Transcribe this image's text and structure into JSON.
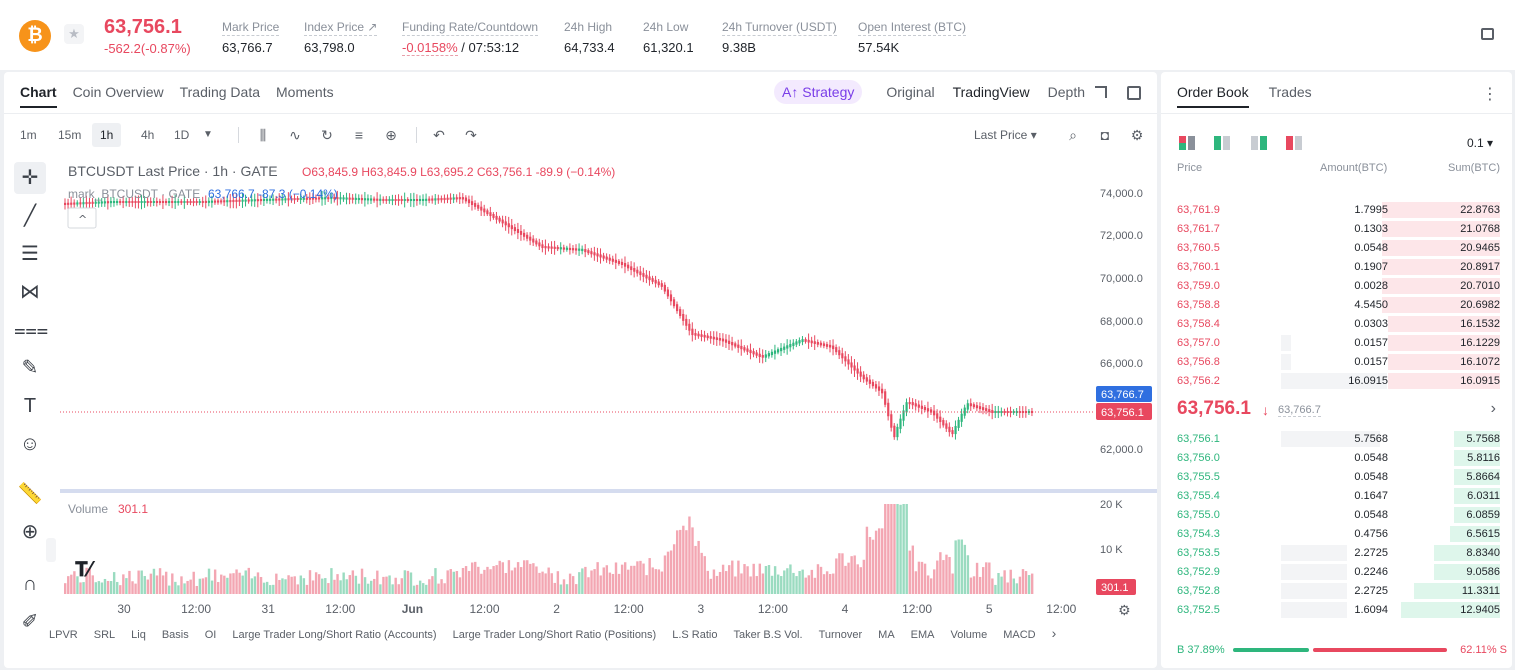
{
  "ticker": {
    "coin_letter": "₿",
    "last_price": "63,756.1",
    "change": "-562.2(-0.87%)",
    "stats": [
      {
        "label": "Mark Price",
        "value": "63,766.7"
      },
      {
        "label": "Index Price ↗",
        "value": "63,798.0"
      },
      {
        "label": "Funding Rate/Countdown",
        "value_red": "-0.0158%",
        "value": " / 07:53:12"
      },
      {
        "label": "24h High",
        "value": "64,733.4"
      },
      {
        "label": "24h Low",
        "value": "61,320.1"
      },
      {
        "label": "24h Turnover (USDT)",
        "value": "9.38B"
      },
      {
        "label": "Open Interest (BTC)",
        "value": "57.54K"
      }
    ]
  },
  "chart_tabs": [
    "Chart",
    "Coin Overview",
    "Trading Data",
    "Moments"
  ],
  "strategy_label": "A↑ Strategy",
  "view_tabs": [
    "Original",
    "TradingView",
    "Depth"
  ],
  "timeframes": [
    "1m",
    "15m",
    "1h",
    "4h",
    "1D"
  ],
  "price_type": "Last Price ▾",
  "legend": {
    "title": "BTCUSDT Last Price · 1h · GATE",
    "o": "O63,845.9",
    "h": "H63,845.9",
    "l": "L63,695.2",
    "c": "C63,756.1",
    "chg": "-89.9 (−0.14%)",
    "mark_title": "mark_BTCUSDT · GATE",
    "mark_vals": "63,766.7  -87.3 (−0.14%)"
  },
  "volume_legend": {
    "label": "Volume",
    "value": "301.1"
  },
  "price_axis": [
    "74,000.0",
    "72,000.0",
    "70,000.0",
    "68,000.0",
    "66,000.0",
    "64,000.0",
    "62,000.0"
  ],
  "price_tags": {
    "mark": "63,766.7",
    "last": "63,756.1"
  },
  "volume_axis": [
    "20 K",
    "10 K"
  ],
  "volume_tag": "301.1",
  "time_axis": [
    "30",
    "12:00",
    "31",
    "12:00",
    "Jun",
    "12:00",
    "2",
    "12:00",
    "3",
    "12:00",
    "4",
    "12:00",
    "5",
    "12:00"
  ],
  "indicators": [
    "LPVR",
    "SRL",
    "Liq",
    "Basis",
    "OI",
    "Large Trader Long/Short Ratio (Accounts)",
    "Large Trader Long/Short Ratio (Positions)",
    "L.S Ratio",
    "Taker B.S Vol.",
    "Turnover",
    "MA",
    "EMA",
    "Volume",
    "MACD"
  ],
  "order_book": {
    "tabs": [
      "Order Book",
      "Trades"
    ],
    "precision": "0.1 ▾",
    "headers": [
      "Price",
      "Amount(BTC)",
      "Sum(BTC)"
    ],
    "asks": [
      {
        "price": "63,761.9",
        "amount": "1.7995",
        "sum": "22.8763",
        "a": 0,
        "s": 0.48
      },
      {
        "price": "63,761.7",
        "amount": "0.1303",
        "sum": "21.0768",
        "a": 0,
        "s": 0.44
      },
      {
        "price": "63,760.5",
        "amount": "0.0548",
        "sum": "20.9465",
        "a": 0,
        "s": 0.44
      },
      {
        "price": "63,760.1",
        "amount": "0.1907",
        "sum": "20.8917",
        "a": 0,
        "s": 0.44
      },
      {
        "price": "63,759.0",
        "amount": "0.0028",
        "sum": "20.7010",
        "a": 0,
        "s": 0.43
      },
      {
        "price": "63,758.8",
        "amount": "4.5450",
        "sum": "20.6982",
        "a": 0,
        "s": 0.43
      },
      {
        "price": "63,758.4",
        "amount": "0.0303",
        "sum": "16.1532",
        "a": 0,
        "s": 0.34
      },
      {
        "price": "63,757.0",
        "amount": "0.0157",
        "sum": "16.1229",
        "a": 0.03,
        "s": 0.34
      },
      {
        "price": "63,756.8",
        "amount": "0.0157",
        "sum": "16.1072",
        "a": 0.03,
        "s": 0.34
      },
      {
        "price": "63,756.2",
        "amount": "16.0915",
        "sum": "16.0915",
        "a": 0.32,
        "s": 0.34
      }
    ],
    "mid_price": "63,756.1",
    "mid_arrow": "↓",
    "mid_mark": "63,766.7",
    "bids": [
      {
        "price": "63,756.1",
        "amount": "5.7568",
        "sum": "5.7568",
        "a": 0.3,
        "s": 0.14
      },
      {
        "price": "63,756.0",
        "amount": "0.0548",
        "sum": "5.8116",
        "a": 0,
        "s": 0.14
      },
      {
        "price": "63,755.5",
        "amount": "0.0548",
        "sum": "5.8664",
        "a": 0,
        "s": 0.14
      },
      {
        "price": "63,755.4",
        "amount": "0.1647",
        "sum": "6.0311",
        "a": 0,
        "s": 0.14
      },
      {
        "price": "63,755.0",
        "amount": "0.0548",
        "sum": "6.0859",
        "a": 0,
        "s": 0.14
      },
      {
        "price": "63,754.3",
        "amount": "0.4756",
        "sum": "6.5615",
        "a": 0,
        "s": 0.15
      },
      {
        "price": "63,753.5",
        "amount": "2.2725",
        "sum": "8.8340",
        "a": 0.2,
        "s": 0.2
      },
      {
        "price": "63,752.9",
        "amount": "0.2246",
        "sum": "9.0586",
        "a": 0.2,
        "s": 0.2
      },
      {
        "price": "63,752.8",
        "amount": "2.2725",
        "sum": "11.3311",
        "a": 0.2,
        "s": 0.26
      },
      {
        "price": "63,752.5",
        "amount": "1.6094",
        "sum": "12.9405",
        "a": 0.2,
        "s": 0.3
      }
    ],
    "buy_ratio": "B 37.89%",
    "sell_ratio": "62.11% S"
  },
  "colors": {
    "up": "#2eb67d",
    "down": "#e8485f",
    "accent": "#7a3ee8"
  }
}
